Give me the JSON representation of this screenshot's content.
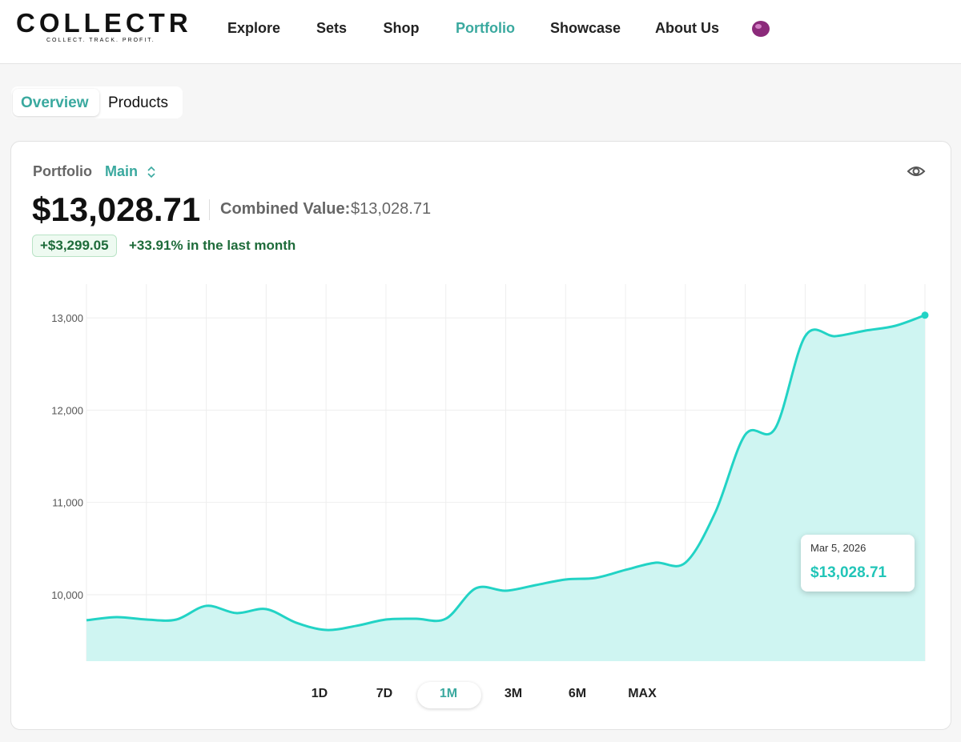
{
  "header": {
    "logo": "COLLECTR",
    "tagline": "COLLECT. TRACK. PROFIT.",
    "nav": [
      "Explore",
      "Sets",
      "Shop",
      "Portfolio",
      "Showcase",
      "About Us"
    ]
  },
  "tabs": [
    "Overview",
    "Products"
  ],
  "portfolio": {
    "label": "Portfolio",
    "name": "Main",
    "value": "$13,028.71",
    "combined_label": "Combined Value:",
    "combined_value": "$13,028.71",
    "change": "+$3,299.05",
    "change_pct": "+33.91% in the last month"
  },
  "chart_data": {
    "type": "area",
    "values": [
      9723,
      9757,
      9731,
      9731,
      9879,
      9801,
      9844,
      9697,
      9618,
      9662,
      9731,
      9740,
      9740,
      10069,
      10043,
      10104,
      10165,
      10182,
      10269,
      10347,
      10347,
      10893,
      11734,
      11803,
      12801,
      12801,
      12861,
      12913,
      13028.71
    ],
    "ylim": [
      9280,
      13365
    ],
    "yticks": [
      {
        "value": 10000,
        "label": "10,000"
      },
      {
        "value": 11000,
        "label": "11,000"
      },
      {
        "value": 12000,
        "label": "12,000"
      },
      {
        "value": 13000,
        "label": "13,000"
      }
    ],
    "color": "#22d3c5",
    "fill": "#cff5f2",
    "grid": true,
    "tooltip": {
      "date": "Mar 5, 2026",
      "value": "$13,028.71"
    }
  },
  "ranges": [
    "1D",
    "7D",
    "1M",
    "3M",
    "6M",
    "MAX"
  ]
}
